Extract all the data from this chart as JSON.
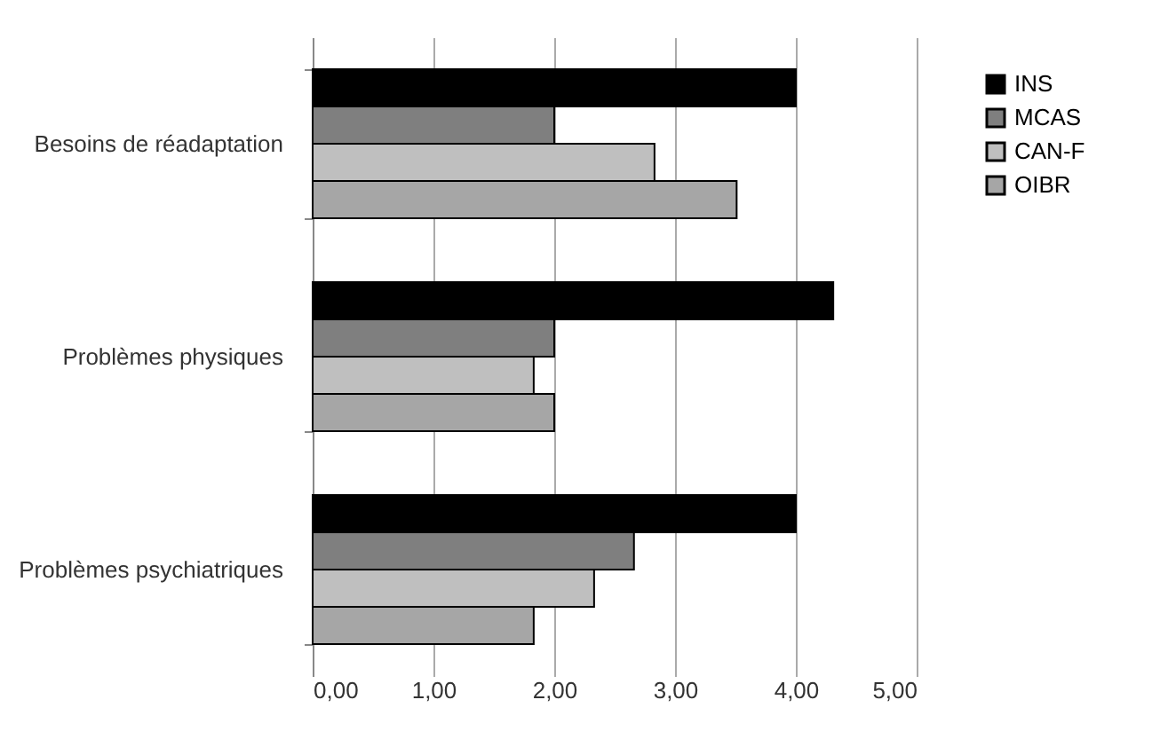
{
  "chart_data": {
    "type": "bar",
    "orientation": "horizontal",
    "categories": [
      "Besoins de réadaptation",
      "Problèmes physiques",
      "Problèmes psychiatriques"
    ],
    "series": [
      {
        "name": "INS",
        "color": "#000000",
        "values": [
          4.0,
          4.31,
          4.0
        ]
      },
      {
        "name": "MCAS",
        "color": "#7f7f7f",
        "values": [
          2.0,
          2.0,
          2.66
        ]
      },
      {
        "name": "CAN-F",
        "color": "#bfbfbf",
        "values": [
          2.83,
          1.83,
          2.33
        ]
      },
      {
        "name": "OIBR",
        "color": "#a6a6a6",
        "values": [
          3.51,
          2.0,
          1.83
        ]
      }
    ],
    "xlim": [
      0,
      5
    ],
    "xticks": [
      {
        "value": 0,
        "label": "0,00"
      },
      {
        "value": 1,
        "label": "1,00"
      },
      {
        "value": 2,
        "label": "2,00"
      },
      {
        "value": 3,
        "label": "3,00"
      },
      {
        "value": 4,
        "label": "4,00"
      },
      {
        "value": 5,
        "label": "5,00"
      }
    ],
    "grid": "x",
    "legend": "right"
  }
}
